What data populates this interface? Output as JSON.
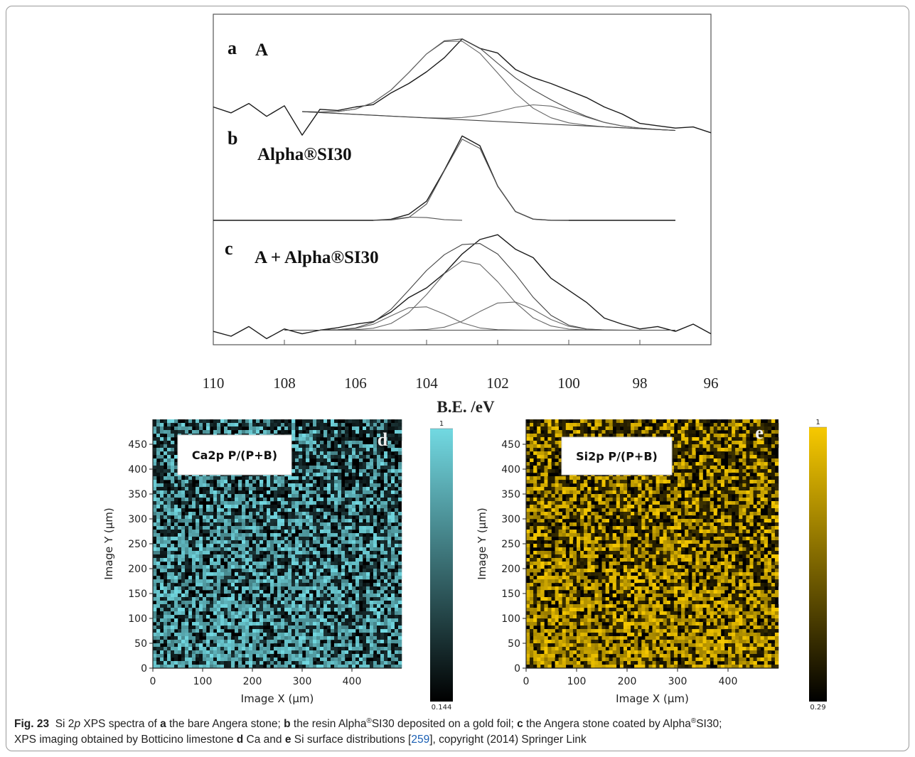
{
  "chart_data": [
    {
      "type": "line",
      "xlabel": "B.E. /eV",
      "xlim": [
        110,
        96
      ],
      "xticks": [
        110,
        108,
        106,
        104,
        102,
        100,
        98,
        96
      ],
      "panels": [
        {
          "label": "a",
          "title": "A",
          "ylim": [
            0,
            100
          ],
          "series": [
            {
              "color": "#1a1a1a",
              "x": [
                110,
                109.5,
                109,
                108.5,
                108,
                107.5,
                107,
                106.5,
                106,
                105.5,
                105,
                104.5,
                104,
                103.5,
                103,
                102.5,
                102,
                101.5,
                101,
                100.5,
                100,
                99.5,
                99,
                98.5,
                98,
                97.5,
                97,
                96.5,
                96
              ],
              "values": [
                30,
                25,
                33,
                22,
                31,
                6,
                28,
                27,
                30,
                32,
                42,
                50,
                60,
                72,
                88,
                80,
                76,
                62,
                55,
                50,
                44,
                38,
                30,
                24,
                16,
                14,
                12,
                13,
                8
              ]
            },
            {
              "color": "#444444",
              "x": [
                107.5,
                107,
                106.5,
                106,
                105.5,
                105,
                104.5,
                104,
                103.5,
                103,
                102.5,
                102,
                101.5,
                101,
                100.5,
                100,
                99.5,
                99,
                98.5,
                98,
                97.5,
                97
              ],
              "values": [
                26.1,
                25.7,
                26.1,
                28.2,
                33.9,
                44.4,
                59.4,
                75.3,
                86.4,
                88,
                80.2,
                67.3,
                54.7,
                44.6,
                36.1,
                28.5,
                22,
                16.9,
                13.8,
                12,
                10.8,
                10
              ]
            },
            {
              "color": "#666666",
              "x": [
                107.5,
                107,
                106.5,
                106,
                105.5,
                105,
                104.5,
                104,
                103.5,
                103,
                102.5,
                102,
                101.5,
                101,
                100.5,
                100,
                99.5,
                99,
                98.5,
                98,
                97.5,
                97
              ],
              "values": [
                26.1,
                25.7,
                26.1,
                28.2,
                33.9,
                44.4,
                59.3,
                75.2,
                85.8,
                86.1,
                75.8,
                58.9,
                41.8,
                28.9,
                20.8,
                16.5,
                14.4,
                13.1,
                12.3,
                11.5,
                10.7,
                10
              ]
            },
            {
              "color": "#666666",
              "x": [
                107.5,
                107,
                106.5,
                106,
                105.5,
                105,
                104.5,
                104,
                103.5,
                103,
                102.5,
                102,
                101.5,
                101,
                100.5,
                100,
                99.5,
                99,
                98.5,
                98,
                97.5,
                97
              ],
              "values": [
                26,
                25.2,
                24.5,
                23.7,
                23,
                22.2,
                21.5,
                20.8,
                20.5,
                21,
                22.8,
                26,
                29.7,
                31.8,
                30.7,
                26.5,
                21.4,
                16.8,
                13.8,
                12,
                10.8,
                10
              ]
            },
            {
              "color": "#444444",
              "x": [
                107.5,
                97
              ],
              "values": [
                26,
                10
              ]
            }
          ]
        },
        {
          "label": "b",
          "title": "Alpha®SI30",
          "ylim": [
            0,
            100
          ],
          "series": [
            {
              "color": "#1a1a1a",
              "x": [
                110,
                109.5,
                109,
                108.5,
                108,
                107.5,
                107,
                106.5,
                106,
                105.5,
                105,
                104.5,
                104,
                103.5,
                103,
                102.5,
                102,
                101.5,
                101,
                100.5,
                100,
                99.5,
                99,
                98.5,
                98,
                97.5,
                97
              ],
              "values": [
                0,
                0,
                0,
                0,
                0,
                0,
                0,
                0,
                0,
                0,
                1.3,
                6.9,
                21.5,
                56.4,
                95,
                84,
                38.6,
                9.9,
                1.4,
                0.1,
                0,
                0,
                0,
                0,
                0,
                0,
                0
              ]
            },
            {
              "color": "#555555",
              "x": [
                105.5,
                105,
                104.5,
                104,
                103.5,
                103,
                102.5,
                102,
                101.5,
                101,
                100.5,
                100
              ],
              "values": [
                0,
                0.3,
                3.3,
                18.4,
                55.7,
                91.4,
                81,
                38.6,
                9.9,
                1.4,
                0.1,
                0
              ]
            },
            {
              "color": "#555555",
              "x": [
                105.5,
                105,
                104.5,
                104,
                103.5,
                103
              ],
              "values": [
                0,
                1,
                3.6,
                3.1,
                0.7,
                0.1
              ]
            }
          ]
        },
        {
          "label": "c",
          "title": "A + Alpha®SI30",
          "ylim": [
            0,
            100
          ],
          "series": [
            {
              "color": "#1a1a1a",
              "x": [
                110,
                109.5,
                109,
                108.5,
                108,
                107.5,
                107,
                106.5,
                106,
                105.5,
                105,
                104.5,
                104,
                103.5,
                103,
                102.5,
                102,
                101.5,
                101,
                100.5,
                100,
                99.5,
                99,
                98.5,
                98,
                97.5,
                97,
                96.5,
                96
              ],
              "values": [
                14,
                10,
                18,
                8,
                16,
                12,
                15,
                17,
                20,
                22,
                30,
                42,
                50,
                62,
                78,
                90,
                94,
                82,
                75,
                58,
                48,
                38,
                25,
                20,
                16,
                18,
                14,
                20,
                12
              ]
            },
            {
              "color": "#444444",
              "x": [
                108,
                107.5,
                107,
                106.5,
                106,
                105.5,
                105,
                104.5,
                104,
                103.5,
                103,
                102.5,
                102,
                101.5,
                101,
                100.5,
                100,
                99.5,
                99,
                98.5,
                98,
                97.5,
                97
              ],
              "values": [
                15,
                15,
                15,
                15.4,
                16.8,
                21.5,
                32.3,
                48.2,
                64.4,
                77.5,
                85.8,
                86.7,
                78,
                61.3,
                42.2,
                27.3,
                19.1,
                16,
                15.2,
                15,
                15,
                15,
                15
              ]
            },
            {
              "color": "#666666",
              "x": [
                108,
                107.5,
                107,
                106.5,
                106,
                105.5,
                105,
                104.5,
                104,
                103.5,
                103,
                102.5,
                102,
                101.5,
                101,
                100.5,
                100,
                99.5,
                99,
                98.5,
                98,
                97.5,
                97
              ],
              "values": [
                15,
                15,
                15,
                15.1,
                15.4,
                16.6,
                20.5,
                29.5,
                44.5,
                61.7,
                72.3,
                69.5,
                55.1,
                37.9,
                25.1,
                18.5,
                15.9,
                15.2,
                15,
                15,
                15,
                15,
                15
              ]
            },
            {
              "color": "#666666",
              "x": [
                108,
                107.5,
                107,
                106.5,
                106,
                105.5,
                105,
                104.5,
                104,
                103.5,
                103,
                102.5,
                102,
                101.5,
                101,
                100.5,
                100,
                99.5,
                99,
                98.5,
                98,
                97.5,
                97
              ],
              "values": [
                15,
                15,
                15,
                15.3,
                16.4,
                19.9,
                26.8,
                33.6,
                34.3,
                28.3,
                21.1,
                16.8,
                15.4,
                15.1,
                15,
                15,
                15,
                15,
                15,
                15,
                15,
                15,
                15
              ]
            },
            {
              "color": "#666666",
              "x": [
                108,
                107.5,
                107,
                106.5,
                106,
                105.5,
                105,
                104.5,
                104,
                103.5,
                103,
                102.5,
                102,
                101.5,
                101,
                100.5,
                100,
                99.5,
                99,
                98.5,
                98,
                97.5,
                97
              ],
              "values": [
                15,
                15,
                15,
                15,
                15,
                15,
                15,
                15.1,
                15.6,
                17.5,
                22.4,
                30.4,
                37.5,
                38.3,
                32.1,
                23.8,
                18.2,
                15.8,
                15.2,
                15,
                15,
                15,
                15
              ]
            },
            {
              "color": "#444444",
              "x": [
                108,
                97
              ],
              "values": [
                15,
                15
              ]
            }
          ]
        }
      ]
    },
    {
      "type": "heatmap",
      "title": "Ca2p P/(P+B)",
      "panel": "d",
      "xlabel": "Image X (µm)",
      "ylabel": "Image Y (µm)",
      "xlim": [
        0,
        500
      ],
      "ylim": [
        0,
        500
      ],
      "xticks": [
        0,
        100,
        200,
        300,
        400
      ],
      "yticks": [
        0,
        50,
        100,
        150,
        200,
        250,
        300,
        350,
        400,
        450
      ],
      "color": "#72d9e2",
      "clim": [
        0.144,
        1
      ],
      "colorbar_ticks": [
        0.144,
        1
      ]
    },
    {
      "type": "heatmap",
      "title": "Si2p P/(P+B)",
      "panel": "e",
      "xlabel": "Image X (µm)",
      "ylabel": "Image Y (µm)",
      "xlim": [
        0,
        500
      ],
      "ylim": [
        0,
        500
      ],
      "xticks": [
        0,
        100,
        200,
        300,
        400
      ],
      "yticks": [
        0,
        50,
        100,
        150,
        200,
        250,
        300,
        350,
        400,
        450
      ],
      "color": "#f7c900",
      "clim": [
        0.29,
        1
      ],
      "colorbar_ticks": [
        0.29,
        1
      ]
    }
  ],
  "caption": [
    "Fig. 23",
    "  Si 2",
    "p",
    " XPS spectra of ",
    "a",
    " the bare Angera stone; ",
    "b",
    " the resin Alpha",
    "®",
    "SI30 deposited on a gold foil; ",
    "c",
    " the Angera stone coated by Alpha",
    "®",
    "SI30;",
    "XPS imaging obtained by Botticino limestone ",
    "d",
    " Ca and ",
    "e",
    " Si surface distributions [",
    "259",
    "], copyright (2014) Springer Link"
  ]
}
